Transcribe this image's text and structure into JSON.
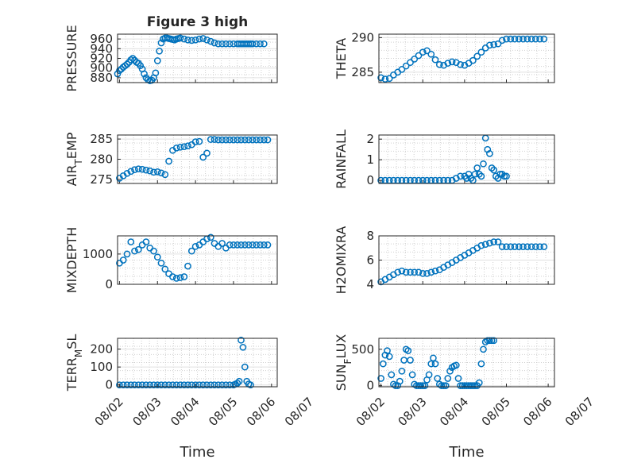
{
  "figure": {
    "title": "Figure 3 high"
  },
  "chart_data": [
    {
      "type": "scatter",
      "marker": "circle",
      "color": "#0072BD",
      "title": "Figure 3 high",
      "ylabel": "PRESSURE",
      "xlabel": "",
      "xlim": [
        0.95,
        5.15
      ],
      "ylim": [
        870,
        970
      ],
      "yticks": [
        "880",
        "900",
        "920",
        "940",
        "960"
      ],
      "xticks": [],
      "grid": "on",
      "x": [
        0.9,
        0.95,
        1.0,
        1.05,
        1.1,
        1.15,
        1.2,
        1.25,
        1.3,
        1.35,
        1.4,
        1.45,
        1.5,
        1.55,
        1.6,
        1.65,
        1.7,
        1.75,
        1.8,
        1.85,
        1.9,
        1.95,
        2.0,
        2.05,
        2.1,
        2.15,
        2.2,
        2.25,
        2.3,
        2.35,
        2.4,
        2.45,
        2.5,
        2.55,
        2.6,
        2.7,
        2.8,
        2.9,
        3.0,
        3.1,
        3.2,
        3.3,
        3.4,
        3.5,
        3.6,
        3.7,
        3.8,
        3.9,
        4.0,
        4.1,
        4.15,
        4.2,
        4.25,
        4.3,
        4.35,
        4.4,
        4.45,
        4.5,
        4.6,
        4.7,
        4.8
      ],
      "y": [
        882,
        888,
        895,
        898,
        902,
        905,
        908,
        912,
        917,
        920,
        916,
        912,
        910,
        905,
        898,
        888,
        880,
        876,
        874,
        875,
        880,
        890,
        915,
        935,
        952,
        960,
        962,
        962,
        961,
        960,
        959,
        958,
        960,
        961,
        962,
        960,
        958,
        957,
        958,
        960,
        961,
        958,
        955,
        952,
        950,
        950,
        950,
        950,
        950,
        950,
        950,
        950,
        950,
        950,
        950,
        950,
        950,
        950,
        950,
        950,
        950
      ]
    },
    {
      "type": "scatter",
      "marker": "circle",
      "color": "#0072BD",
      "ylabel": "THETA",
      "xlabel": "",
      "xlim": [
        0.95,
        5.15
      ],
      "ylim": [
        283.5,
        290.5
      ],
      "yticks": [
        "285",
        "290"
      ],
      "xticks": [],
      "grid": "on",
      "x": [
        0.9,
        1.0,
        1.1,
        1.2,
        1.3,
        1.4,
        1.5,
        1.6,
        1.7,
        1.8,
        1.9,
        2.0,
        2.1,
        2.2,
        2.3,
        2.4,
        2.5,
        2.6,
        2.7,
        2.8,
        2.9,
        3.0,
        3.1,
        3.2,
        3.3,
        3.4,
        3.5,
        3.6,
        3.7,
        3.8,
        3.9,
        4.0,
        4.1,
        4.2,
        4.3,
        4.4,
        4.5,
        4.6,
        4.7,
        4.8,
        4.9
      ],
      "y": [
        284.3,
        284.2,
        284.0,
        284.1,
        284.6,
        285.0,
        285.4,
        285.9,
        286.4,
        286.9,
        287.4,
        287.9,
        288.1,
        287.6,
        286.8,
        286.1,
        286.0,
        286.3,
        286.5,
        286.4,
        286.1,
        286.0,
        286.3,
        286.7,
        287.3,
        287.9,
        288.5,
        288.9,
        289.0,
        289.1,
        289.6,
        289.8,
        289.8,
        289.8,
        289.8,
        289.8,
        289.8,
        289.8,
        289.8,
        289.8,
        289.8
      ]
    },
    {
      "type": "scatter",
      "marker": "circle",
      "color": "#0072BD",
      "ylabel": "AIR_TEMP",
      "xlabel": "",
      "xlim": [
        0.95,
        5.15
      ],
      "ylim": [
        274,
        286
      ],
      "yticks": [
        "275",
        "280",
        "285"
      ],
      "xticks": [],
      "grid": "on",
      "x": [
        0.9,
        1.0,
        1.1,
        1.2,
        1.3,
        1.4,
        1.5,
        1.6,
        1.7,
        1.8,
        1.9,
        2.0,
        2.1,
        2.2,
        2.3,
        2.4,
        2.5,
        2.6,
        2.7,
        2.8,
        2.9,
        3.0,
        3.1,
        3.2,
        3.3,
        3.4,
        3.5,
        3.6,
        3.7,
        3.8,
        3.9,
        4.0,
        4.1,
        4.2,
        4.3,
        4.4,
        4.5,
        4.6,
        4.7,
        4.8,
        4.9
      ],
      "y": [
        274.8,
        275.3,
        275.9,
        276.5,
        277.0,
        277.4,
        277.6,
        277.5,
        277.3,
        277.1,
        276.8,
        276.9,
        276.6,
        276.2,
        279.5,
        282.2,
        282.8,
        283.0,
        283.1,
        283.3,
        283.6,
        284.3,
        284.4,
        280.5,
        281.5,
        284.9,
        284.9,
        284.8,
        284.8,
        284.8,
        284.8,
        284.8,
        284.8,
        284.8,
        284.8,
        284.8,
        284.8,
        284.8,
        284.8,
        284.8,
        284.8
      ]
    },
    {
      "type": "scatter",
      "marker": "circle",
      "color": "#0072BD",
      "ylabel": "RAINFALL",
      "xlabel": "",
      "xlim": [
        0.95,
        5.15
      ],
      "ylim": [
        -0.15,
        2.2
      ],
      "yticks": [
        "0",
        "1",
        "2"
      ],
      "xticks": [],
      "grid": "on",
      "x": [
        0.9,
        1.0,
        1.1,
        1.2,
        1.3,
        1.4,
        1.5,
        1.6,
        1.7,
        1.8,
        1.9,
        2.0,
        2.1,
        2.2,
        2.3,
        2.4,
        2.5,
        2.6,
        2.7,
        2.8,
        2.9,
        3.0,
        3.05,
        3.1,
        3.15,
        3.2,
        3.25,
        3.3,
        3.35,
        3.4,
        3.45,
        3.5,
        3.55,
        3.6,
        3.65,
        3.7,
        3.75,
        3.8,
        3.85,
        3.9,
        3.95,
        4.0
      ],
      "y": [
        0,
        0,
        0,
        0,
        0,
        0,
        0,
        0,
        0,
        0,
        0,
        0,
        0,
        0,
        0,
        0,
        0,
        0,
        0,
        0.1,
        0.2,
        0.2,
        0.1,
        0.3,
        0.1,
        0,
        0.3,
        0.6,
        0.3,
        0.2,
        0.8,
        2.05,
        1.5,
        1.3,
        0.6,
        0.5,
        0.2,
        0.1,
        0.3,
        0.3,
        0.2,
        0.2
      ]
    },
    {
      "type": "scatter",
      "marker": "circle",
      "color": "#0072BD",
      "ylabel": "MIXDEPTH",
      "xlabel": "",
      "xlim": [
        0.95,
        5.15
      ],
      "ylim": [
        0,
        1600
      ],
      "yticks": [
        "0",
        "1000"
      ],
      "xticks": [],
      "grid": "on",
      "x": [
        0.9,
        1.0,
        1.1,
        1.2,
        1.3,
        1.4,
        1.5,
        1.6,
        1.7,
        1.8,
        1.9,
        2.0,
        2.1,
        2.2,
        2.3,
        2.4,
        2.5,
        2.6,
        2.7,
        2.8,
        2.9,
        3.0,
        3.1,
        3.2,
        3.3,
        3.4,
        3.5,
        3.6,
        3.7,
        3.8,
        3.9,
        4.0,
        4.1,
        4.2,
        4.3,
        4.4,
        4.5,
        4.6,
        4.7,
        4.8,
        4.9
      ],
      "y": [
        600,
        700,
        800,
        1000,
        1400,
        1100,
        1150,
        1300,
        1400,
        1200,
        1100,
        900,
        700,
        500,
        350,
        250,
        200,
        220,
        250,
        600,
        1100,
        1250,
        1300,
        1400,
        1500,
        1550,
        1350,
        1250,
        1350,
        1200,
        1300,
        1300,
        1300,
        1300,
        1300,
        1300,
        1300,
        1300,
        1300,
        1300,
        1300
      ]
    },
    {
      "type": "scatter",
      "marker": "circle",
      "color": "#0072BD",
      "ylabel": "H2OMIXRA",
      "xlabel": "",
      "xlim": [
        0.95,
        5.15
      ],
      "ylim": [
        4,
        8
      ],
      "yticks": [
        "4",
        "6",
        "8"
      ],
      "xticks": [],
      "grid": "on",
      "x": [
        0.9,
        1.0,
        1.1,
        1.2,
        1.3,
        1.4,
        1.5,
        1.6,
        1.7,
        1.8,
        1.9,
        2.0,
        2.1,
        2.2,
        2.3,
        2.4,
        2.5,
        2.6,
        2.7,
        2.8,
        2.9,
        3.0,
        3.1,
        3.2,
        3.3,
        3.4,
        3.5,
        3.6,
        3.7,
        3.8,
        3.9,
        4.0,
        4.1,
        4.2,
        4.3,
        4.4,
        4.5,
        4.6,
        4.7,
        4.8,
        4.9
      ],
      "y": [
        4.2,
        4.2,
        4.4,
        4.6,
        4.8,
        5.0,
        5.1,
        5.0,
        5.0,
        5.0,
        5.0,
        4.9,
        4.9,
        5.0,
        5.1,
        5.2,
        5.4,
        5.6,
        5.8,
        6.0,
        6.2,
        6.4,
        6.6,
        6.8,
        7.0,
        7.2,
        7.3,
        7.4,
        7.5,
        7.5,
        7.1,
        7.1,
        7.1,
        7.1,
        7.1,
        7.1,
        7.1,
        7.1,
        7.1,
        7.1,
        7.1
      ]
    },
    {
      "type": "scatter",
      "marker": "circle",
      "color": "#0072BD",
      "ylabel": "TERR_MSL",
      "xlabel": "Time",
      "xlim": [
        0.95,
        5.15
      ],
      "ylim": [
        -10,
        260
      ],
      "yticks": [
        "0",
        "100",
        "200"
      ],
      "xticks": [
        "08/02",
        "08/03",
        "08/04",
        "08/05",
        "08/06",
        "08/07"
      ],
      "grid": "on",
      "x": [
        0.9,
        1.0,
        1.1,
        1.2,
        1.3,
        1.4,
        1.5,
        1.6,
        1.7,
        1.8,
        1.9,
        2.0,
        2.1,
        2.2,
        2.3,
        2.4,
        2.5,
        2.6,
        2.7,
        2.8,
        2.9,
        3.0,
        3.1,
        3.2,
        3.3,
        3.4,
        3.5,
        3.6,
        3.7,
        3.8,
        3.9,
        4.0,
        4.05,
        4.1,
        4.15,
        4.2,
        4.25,
        4.3,
        4.35,
        4.4,
        4.45
      ],
      "y": [
        0,
        0,
        0,
        0,
        0,
        0,
        0,
        0,
        0,
        0,
        0,
        0,
        0,
        0,
        0,
        0,
        0,
        0,
        0,
        0,
        0,
        0,
        0,
        0,
        0,
        0,
        0,
        0,
        0,
        0,
        0,
        0,
        5,
        10,
        20,
        250,
        210,
        100,
        20,
        5,
        0
      ]
    },
    {
      "type": "scatter",
      "marker": "circle",
      "color": "#0072BD",
      "ylabel": "SUN_FLUX",
      "xlabel": "Time",
      "xlim": [
        0.95,
        5.15
      ],
      "ylim": [
        -15,
        650
      ],
      "yticks": [
        "0",
        "500"
      ],
      "xticks": [
        "08/02",
        "08/03",
        "08/04",
        "08/05",
        "08/06",
        "08/07"
      ],
      "grid": "on",
      "x": [
        1.0,
        1.05,
        1.1,
        1.15,
        1.2,
        1.25,
        1.3,
        1.35,
        1.4,
        1.45,
        1.5,
        1.55,
        1.6,
        1.65,
        1.7,
        1.75,
        1.8,
        1.85,
        1.9,
        1.95,
        2.0,
        2.05,
        2.1,
        2.15,
        2.2,
        2.25,
        2.3,
        2.35,
        2.4,
        2.45,
        2.5,
        2.55,
        2.6,
        2.65,
        2.7,
        2.75,
        2.8,
        2.85,
        2.9,
        2.95,
        3.0,
        3.05,
        3.1,
        3.15,
        3.2,
        3.25,
        3.3,
        3.35,
        3.4,
        3.45,
        3.5,
        3.55,
        3.6,
        3.65,
        3.7
      ],
      "y": [
        100,
        300,
        420,
        480,
        400,
        150,
        20,
        0,
        0,
        60,
        200,
        350,
        500,
        480,
        350,
        150,
        20,
        0,
        0,
        0,
        0,
        0,
        80,
        150,
        300,
        380,
        300,
        100,
        20,
        0,
        0,
        0,
        100,
        200,
        250,
        270,
        280,
        100,
        0,
        0,
        0,
        0,
        0,
        0,
        0,
        0,
        0,
        40,
        300,
        500,
        600,
        620,
        620,
        620,
        620
      ]
    }
  ]
}
